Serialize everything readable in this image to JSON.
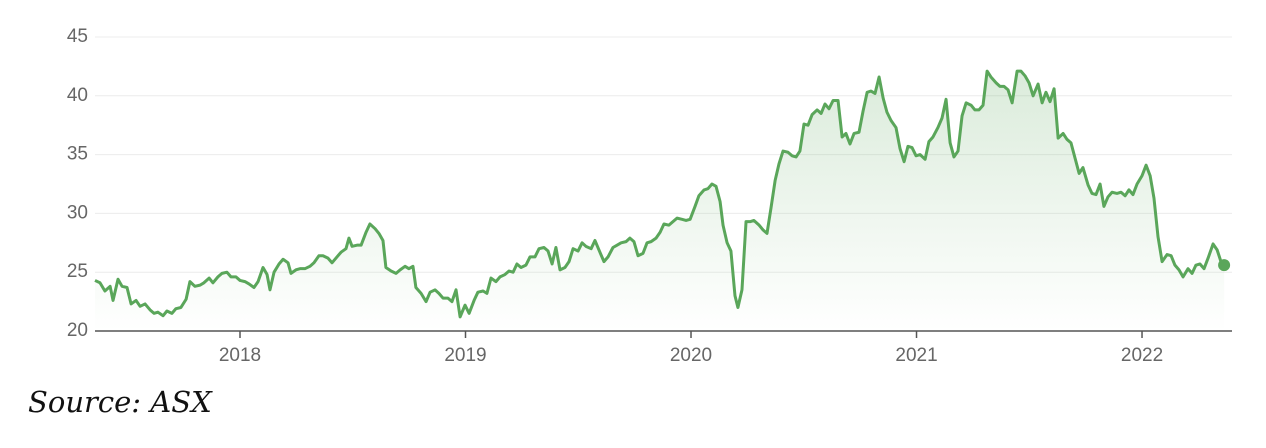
{
  "chart_data": {
    "type": "line",
    "color": "#5aa65a",
    "grid": true,
    "area": true,
    "source": "Source: ASX",
    "xlim": [
      2017.357,
      2022.399
    ],
    "xticks": [
      2018,
      2019,
      2020,
      2021,
      2022
    ],
    "ylim": [
      20,
      45
    ],
    "yticks": [
      20,
      25,
      30,
      35,
      40,
      45
    ],
    "x": [
      2017.357,
      2017.379,
      2017.401,
      2017.424,
      2017.437,
      2017.459,
      2017.477,
      2017.499,
      2017.517,
      2017.539,
      2017.557,
      2017.579,
      2017.601,
      2017.619,
      2017.636,
      2017.659,
      2017.676,
      2017.698,
      2017.716,
      2017.738,
      2017.761,
      2017.778,
      2017.8,
      2017.823,
      2017.84,
      2017.863,
      2017.88,
      2017.902,
      2017.92,
      2017.942,
      2017.96,
      2017.982,
      2018,
      2018.022,
      2018.04,
      2018.062,
      2018.08,
      2018.102,
      2018.12,
      2018.133,
      2018.151,
      2018.173,
      2018.191,
      2018.213,
      2018.226,
      2018.248,
      2018.266,
      2018.288,
      2018.31,
      2018.328,
      2018.35,
      2018.368,
      2018.39,
      2018.408,
      2018.43,
      2018.448,
      2018.47,
      2018.483,
      2018.497,
      2018.519,
      2018.537,
      2018.559,
      2018.576,
      2018.599,
      2018.616,
      2018.634,
      2018.647,
      2018.67,
      2018.692,
      2018.71,
      2018.732,
      2018.749,
      2018.767,
      2018.78,
      2018.803,
      2018.825,
      2018.843,
      2018.865,
      2018.882,
      2018.9,
      2018.922,
      2018.94,
      2018.958,
      2018.976,
      2018.998,
      2019.016,
      2019.038,
      2019.055,
      2019.078,
      2019.095,
      2019.113,
      2019.135,
      2019.153,
      2019.175,
      2019.193,
      2019.211,
      2019.228,
      2019.246,
      2019.268,
      2019.286,
      2019.308,
      2019.326,
      2019.348,
      2019.366,
      2019.384,
      2019.401,
      2019.419,
      2019.441,
      2019.459,
      2019.477,
      2019.499,
      2019.517,
      2019.534,
      2019.557,
      2019.574,
      2019.596,
      2019.614,
      2019.632,
      2019.654,
      2019.672,
      2019.69,
      2019.712,
      2019.729,
      2019.747,
      2019.765,
      2019.787,
      2019.805,
      2019.823,
      2019.845,
      2019.863,
      2019.88,
      2019.902,
      2019.92,
      2019.938,
      2019.96,
      2019.978,
      2019.996,
      2020.018,
      2020.035,
      2020.058,
      2020.075,
      2020.093,
      2020.111,
      2020.129,
      2020.142,
      2020.16,
      2020.177,
      2020.195,
      2020.208,
      2020.226,
      2020.244,
      2020.262,
      2020.279,
      2020.302,
      2020.319,
      2020.337,
      2020.355,
      2020.373,
      2020.39,
      2020.408,
      2020.43,
      2020.448,
      2020.466,
      2020.483,
      2020.501,
      2020.519,
      2020.537,
      2020.559,
      2020.577,
      2020.594,
      2020.612,
      2020.63,
      2020.652,
      2020.67,
      2020.687,
      2020.705,
      2020.723,
      2020.745,
      2020.763,
      2020.781,
      2020.798,
      2020.816,
      2020.834,
      2020.852,
      2020.869,
      2020.887,
      2020.909,
      2020.927,
      2020.945,
      2020.962,
      2020.98,
      2020.998,
      2021.016,
      2021.038,
      2021.055,
      2021.073,
      2021.095,
      2021.113,
      2021.131,
      2021.149,
      2021.166,
      2021.184,
      2021.202,
      2021.22,
      2021.242,
      2021.259,
      2021.277,
      2021.295,
      2021.313,
      2021.33,
      2021.353,
      2021.37,
      2021.388,
      2021.406,
      2021.424,
      2021.446,
      2021.463,
      2021.481,
      2021.499,
      2021.517,
      2021.539,
      2021.557,
      2021.574,
      2021.592,
      2021.61,
      2021.628,
      2021.65,
      2021.667,
      2021.685,
      2021.703,
      2021.721,
      2021.738,
      2021.761,
      2021.778,
      2021.796,
      2021.814,
      2021.831,
      2021.849,
      2021.867,
      2021.889,
      2021.907,
      2021.925,
      2021.942,
      2021.96,
      2021.978,
      2022,
      2022.018,
      2022.036,
      2022.053,
      2022.071,
      2022.089,
      2022.111,
      2022.129,
      2022.146,
      2022.164,
      2022.182,
      2022.204,
      2022.222,
      2022.239,
      2022.257,
      2022.275,
      2022.293,
      2022.315,
      2022.333,
      2022.35,
      2022.364
    ],
    "values": [
      24.3,
      24.1,
      23.4,
      23.8,
      22.6,
      24.4,
      23.8,
      23.7,
      22.3,
      22.6,
      22.1,
      22.3,
      21.8,
      21.5,
      21.6,
      21.3,
      21.7,
      21.5,
      21.9,
      22.0,
      22.7,
      24.2,
      23.8,
      23.9,
      24.1,
      24.5,
      24.1,
      24.6,
      24.9,
      25.0,
      24.6,
      24.6,
      24.3,
      24.2,
      24.0,
      23.7,
      24.2,
      25.4,
      24.8,
      23.5,
      25.0,
      25.7,
      26.1,
      25.8,
      24.9,
      25.2,
      25.3,
      25.3,
      25.5,
      25.8,
      26.4,
      26.4,
      26.2,
      25.8,
      26.3,
      26.7,
      27.0,
      27.9,
      27.2,
      27.3,
      27.3,
      28.4,
      29.1,
      28.7,
      28.3,
      27.7,
      25.4,
      25.1,
      24.9,
      25.2,
      25.5,
      25.3,
      25.5,
      23.7,
      23.2,
      22.5,
      23.3,
      23.5,
      23.2,
      22.8,
      22.8,
      22.5,
      23.5,
      21.2,
      22.2,
      21.5,
      22.6,
      23.3,
      23.4,
      23.2,
      24.5,
      24.2,
      24.6,
      24.8,
      25.1,
      25.0,
      25.7,
      25.4,
      25.6,
      26.3,
      26.3,
      27.0,
      27.1,
      26.8,
      25.7,
      27.1,
      25.2,
      25.4,
      25.9,
      27.0,
      26.8,
      27.5,
      27.2,
      27.0,
      27.7,
      26.7,
      25.9,
      26.3,
      27.1,
      27.3,
      27.5,
      27.6,
      27.9,
      27.6,
      26.4,
      26.6,
      27.5,
      27.6,
      27.9,
      28.4,
      29.1,
      29.0,
      29.3,
      29.6,
      29.5,
      29.4,
      29.5,
      30.6,
      31.5,
      32.0,
      32.1,
      32.5,
      32.3,
      31.0,
      29.0,
      27.5,
      26.8,
      23.0,
      22.0,
      23.5,
      29.3,
      29.3,
      29.4,
      29.0,
      28.6,
      28.3,
      30.5,
      32.8,
      34.2,
      35.3,
      35.2,
      34.9,
      34.8,
      35.3,
      37.6,
      37.5,
      38.4,
      38.8,
      38.5,
      39.3,
      38.9,
      39.6,
      39.6,
      36.5,
      36.8,
      35.9,
      36.8,
      36.9,
      38.7,
      40.3,
      40.4,
      40.2,
      41.6,
      39.8,
      38.6,
      37.9,
      37.3,
      35.5,
      34.4,
      35.7,
      35.6,
      34.9,
      35.0,
      34.6,
      36.1,
      36.5,
      37.3,
      38.1,
      39.7,
      36.0,
      34.8,
      35.3,
      38.3,
      39.4,
      39.2,
      38.8,
      38.8,
      39.2,
      42.1,
      41.6,
      41.1,
      40.8,
      40.8,
      40.5,
      39.4,
      42.1,
      42.1,
      41.7,
      41.1,
      40.0,
      41.0,
      39.4,
      40.3,
      39.5,
      40.6,
      36.4,
      36.8,
      36.3,
      36.0,
      34.7,
      33.4,
      33.9,
      32.4,
      31.7,
      31.6,
      32.5,
      30.6,
      31.4,
      31.8,
      31.7,
      31.8,
      31.5,
      32.0,
      31.6,
      32.5,
      33.2,
      34.1,
      33.2,
      31.3,
      28.0,
      25.9,
      26.5,
      26.4,
      25.6,
      25.2,
      24.6,
      25.3,
      24.9,
      25.6,
      25.7,
      25.3,
      26.2,
      27.4,
      26.9,
      25.9,
      25.6
    ]
  }
}
